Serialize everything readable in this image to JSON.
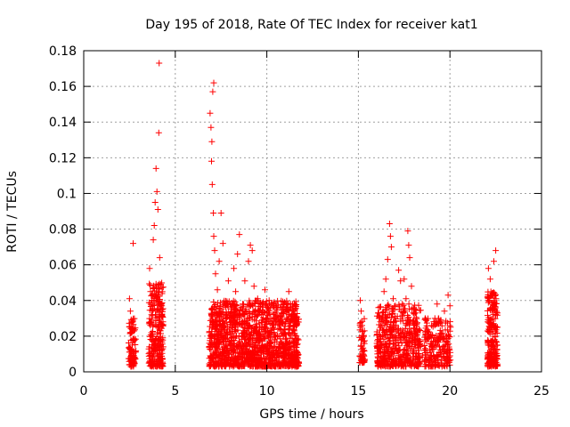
{
  "chart_data": {
    "type": "scatter",
    "title": "Day 195 of 2018, Rate Of TEC Index for receiver kat1",
    "xlabel": "GPS time / hours",
    "ylabel": "ROTI / TECUs",
    "xlim": [
      0,
      25
    ],
    "ylim": [
      0,
      0.18
    ],
    "xticks": [
      0,
      5,
      10,
      15,
      20,
      25
    ],
    "yticks": [
      0,
      0.02,
      0.04,
      0.06,
      0.08,
      0.1,
      0.12,
      0.14,
      0.16,
      0.18
    ],
    "xtick_labels": [
      "0",
      "5",
      "10",
      "15",
      "20",
      "25"
    ],
    "ytick_labels": [
      "0",
      "0.02",
      "0.04",
      "0.06",
      "0.08",
      "0.1",
      "0.12",
      "0.14",
      "0.16",
      "0.18"
    ],
    "grid": true,
    "marker": "+",
    "color": "#ff0000",
    "series": [
      {
        "name": "ROTI",
        "points": [
          [
            2.5,
            0.041
          ],
          [
            2.55,
            0.034
          ],
          [
            2.6,
            0.022
          ],
          [
            2.65,
            0.015
          ],
          [
            2.7,
            0.072
          ],
          [
            2.75,
            0.018
          ],
          [
            2.8,
            0.008
          ],
          [
            2.62,
            0.005
          ],
          [
            2.58,
            0.012
          ],
          [
            2.68,
            0.028
          ],
          [
            3.6,
            0.058
          ],
          [
            3.65,
            0.045
          ],
          [
            3.7,
            0.032
          ],
          [
            3.75,
            0.021
          ],
          [
            3.8,
            0.074
          ],
          [
            3.85,
            0.082
          ],
          [
            3.9,
            0.095
          ],
          [
            3.95,
            0.114
          ],
          [
            4.0,
            0.101
          ],
          [
            4.05,
            0.091
          ],
          [
            4.1,
            0.134
          ],
          [
            4.12,
            0.173
          ],
          [
            4.15,
            0.064
          ],
          [
            4.2,
            0.049
          ],
          [
            4.25,
            0.038
          ],
          [
            4.3,
            0.026
          ],
          [
            4.0,
            0.012
          ],
          [
            3.9,
            0.006
          ],
          [
            4.2,
            0.015
          ],
          [
            3.7,
            0.009
          ],
          [
            6.9,
            0.145
          ],
          [
            6.95,
            0.137
          ],
          [
            7.0,
            0.129
          ],
          [
            7.05,
            0.157
          ],
          [
            7.1,
            0.162
          ],
          [
            6.98,
            0.118
          ],
          [
            7.02,
            0.105
          ],
          [
            7.08,
            0.089
          ],
          [
            7.1,
            0.076
          ],
          [
            7.15,
            0.068
          ],
          [
            7.2,
            0.055
          ],
          [
            7.3,
            0.046
          ],
          [
            7.4,
            0.062
          ],
          [
            7.5,
            0.089
          ],
          [
            7.6,
            0.072
          ],
          [
            7.7,
            0.038
          ],
          [
            7.8,
            0.03
          ],
          [
            7.9,
            0.051
          ],
          [
            8.0,
            0.022
          ],
          [
            7.1,
            0.008
          ],
          [
            8.2,
            0.058
          ],
          [
            8.3,
            0.045
          ],
          [
            8.4,
            0.066
          ],
          [
            8.5,
            0.077
          ],
          [
            8.6,
            0.036
          ],
          [
            8.7,
            0.025
          ],
          [
            8.8,
            0.051
          ],
          [
            8.9,
            0.016
          ],
          [
            9.0,
            0.062
          ],
          [
            9.1,
            0.071
          ],
          [
            9.2,
            0.068
          ],
          [
            9.3,
            0.048
          ],
          [
            9.4,
            0.032
          ],
          [
            9.5,
            0.041
          ],
          [
            9.6,
            0.021
          ],
          [
            9.7,
            0.014
          ],
          [
            9.8,
            0.039
          ],
          [
            9.9,
            0.046
          ],
          [
            10.0,
            0.028
          ],
          [
            10.1,
            0.033
          ],
          [
            10.2,
            0.019
          ],
          [
            10.4,
            0.038
          ],
          [
            10.6,
            0.024
          ],
          [
            10.8,
            0.031
          ],
          [
            11.0,
            0.027
          ],
          [
            11.1,
            0.017
          ],
          [
            11.2,
            0.045
          ],
          [
            11.4,
            0.038
          ],
          [
            11.5,
            0.023
          ],
          [
            11.6,
            0.012
          ],
          [
            15.1,
            0.04
          ],
          [
            15.15,
            0.034
          ],
          [
            15.2,
            0.026
          ],
          [
            15.25,
            0.019
          ],
          [
            15.3,
            0.012
          ],
          [
            15.22,
            0.008
          ],
          [
            16.1,
            0.036
          ],
          [
            16.2,
            0.028
          ],
          [
            16.4,
            0.045
          ],
          [
            16.5,
            0.052
          ],
          [
            16.6,
            0.063
          ],
          [
            16.7,
            0.083
          ],
          [
            16.75,
            0.076
          ],
          [
            16.8,
            0.07
          ],
          [
            16.9,
            0.041
          ],
          [
            17.0,
            0.031
          ],
          [
            17.2,
            0.057
          ],
          [
            17.3,
            0.051
          ],
          [
            17.4,
            0.038
          ],
          [
            17.5,
            0.052
          ],
          [
            17.6,
            0.041
          ],
          [
            17.7,
            0.079
          ],
          [
            17.75,
            0.071
          ],
          [
            17.8,
            0.064
          ],
          [
            17.9,
            0.048
          ],
          [
            18.0,
            0.033
          ],
          [
            18.2,
            0.022
          ],
          [
            18.3,
            0.015
          ],
          [
            18.5,
            0.009
          ],
          [
            18.6,
            0.012
          ],
          [
            18.8,
            0.02
          ],
          [
            19.0,
            0.026
          ],
          [
            19.3,
            0.038
          ],
          [
            19.5,
            0.029
          ],
          [
            19.7,
            0.034
          ],
          [
            19.9,
            0.043
          ],
          [
            20.0,
            0.037
          ],
          [
            19.6,
            0.018
          ],
          [
            19.8,
            0.011
          ],
          [
            22.1,
            0.058
          ],
          [
            22.2,
            0.052
          ],
          [
            22.3,
            0.044
          ],
          [
            22.4,
            0.062
          ],
          [
            22.5,
            0.068
          ],
          [
            22.35,
            0.035
          ],
          [
            22.25,
            0.025
          ],
          [
            22.45,
            0.018
          ],
          [
            22.5,
            0.01
          ],
          [
            22.15,
            0.006
          ]
        ],
        "fill_clusters": [
          {
            "x_start": 2.45,
            "x_end": 2.85,
            "y_min": 0.003,
            "y_max": 0.03,
            "count": 90
          },
          {
            "x_start": 3.55,
            "x_end": 4.35,
            "y_min": 0.003,
            "y_max": 0.05,
            "count": 260
          },
          {
            "x_start": 6.85,
            "x_end": 11.75,
            "y_min": 0.003,
            "y_max": 0.04,
            "count": 1400
          },
          {
            "x_start": 15.05,
            "x_end": 15.35,
            "y_min": 0.005,
            "y_max": 0.03,
            "count": 50
          },
          {
            "x_start": 16.0,
            "x_end": 18.4,
            "y_min": 0.003,
            "y_max": 0.038,
            "count": 520
          },
          {
            "x_start": 18.6,
            "x_end": 20.05,
            "y_min": 0.003,
            "y_max": 0.03,
            "count": 220
          },
          {
            "x_start": 22.05,
            "x_end": 22.6,
            "y_min": 0.003,
            "y_max": 0.045,
            "count": 230
          }
        ]
      }
    ]
  }
}
